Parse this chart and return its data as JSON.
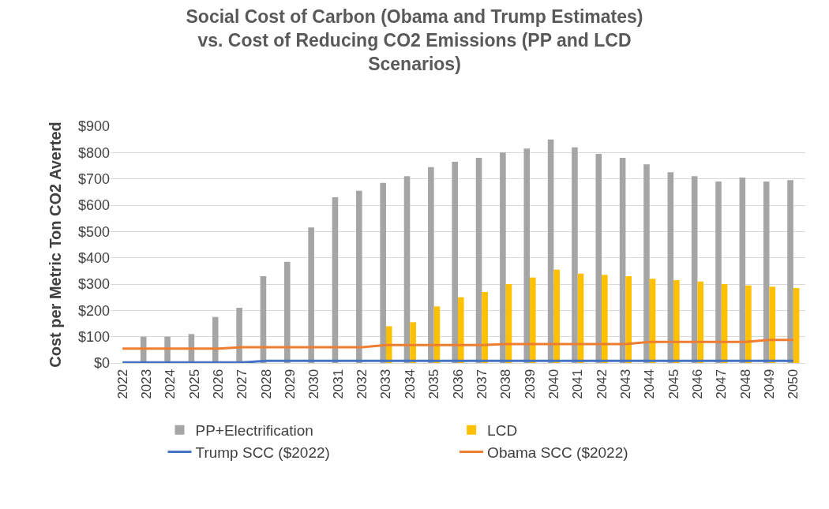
{
  "chart_data": {
    "type": "bar",
    "title": "Social Cost of Carbon (Obama and Trump Estimates)\nvs. Cost of Reducing CO2 Emissions (PP and LCD\nScenarios)",
    "ylabel": "Cost per Metric Ton CO2 Averted",
    "categories": [
      "2022",
      "2023",
      "2024",
      "2025",
      "2026",
      "2027",
      "2028",
      "2029",
      "2030",
      "2031",
      "2032",
      "2033",
      "2034",
      "2035",
      "2036",
      "2037",
      "2038",
      "2039",
      "2040",
      "2041",
      "2042",
      "2043",
      "2044",
      "2045",
      "2046",
      "2047",
      "2048",
      "2049",
      "2050"
    ],
    "series": [
      {
        "name": "PP+Electrification",
        "color": "#a5a5a5",
        "values": [
          null,
          100,
          100,
          110,
          175,
          210,
          330,
          385,
          515,
          630,
          655,
          685,
          710,
          745,
          765,
          780,
          800,
          815,
          850,
          820,
          795,
          780,
          755,
          725,
          710,
          690,
          705,
          690,
          695
        ]
      },
      {
        "name": "LCD",
        "color": "#ffc000",
        "values": [
          null,
          null,
          null,
          null,
          null,
          null,
          null,
          null,
          null,
          null,
          null,
          140,
          155,
          215,
          250,
          270,
          300,
          325,
          355,
          340,
          335,
          330,
          320,
          315,
          310,
          300,
          295,
          290,
          285
        ]
      },
      {
        "name": "Trump SCC ($2022)",
        "type": "line",
        "color": "#4472c4",
        "values": [
          2,
          2,
          2,
          2,
          2,
          2,
          8,
          8,
          8,
          8,
          8,
          8,
          8,
          8,
          8,
          8,
          8,
          8,
          8,
          8,
          8,
          8,
          8,
          8,
          8,
          8,
          8,
          8,
          8
        ]
      },
      {
        "name": "Obama SCC ($2022)",
        "type": "line",
        "color": "#ed7d31",
        "values": [
          55,
          55,
          55,
          55,
          55,
          60,
          60,
          60,
          60,
          60,
          60,
          68,
          68,
          68,
          68,
          68,
          72,
          72,
          72,
          72,
          72,
          72,
          80,
          80,
          80,
          80,
          80,
          88,
          88
        ]
      }
    ],
    "ylim": [
      0,
      900
    ],
    "yticks": [
      {
        "value": 0,
        "label": "$0"
      },
      {
        "value": 100,
        "label": "$100"
      },
      {
        "value": 200,
        "label": "$200"
      },
      {
        "value": 300,
        "label": "$300"
      },
      {
        "value": 400,
        "label": "$400"
      },
      {
        "value": 500,
        "label": "$500"
      },
      {
        "value": 600,
        "label": "$600"
      },
      {
        "value": 700,
        "label": "$700"
      },
      {
        "value": 800,
        "label": "$800"
      },
      {
        "value": 900,
        "label": "$900"
      }
    ],
    "grid": "y",
    "legend": "bottom",
    "marker": "none",
    "line_style": "solid"
  }
}
